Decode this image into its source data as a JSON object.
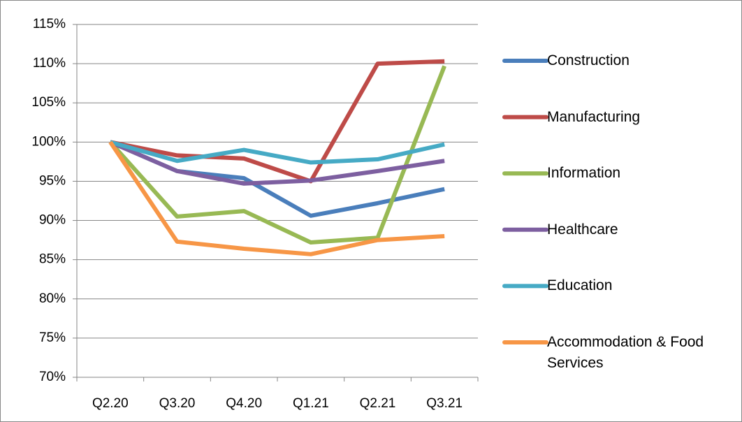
{
  "chart_data": {
    "type": "line",
    "categories": [
      "Q2.20",
      "Q3.20",
      "Q4.20",
      "Q1.21",
      "Q2.21",
      "Q3.21"
    ],
    "series": [
      {
        "name": "Construction",
        "color": "#4a7ebb",
        "values": [
          100,
          96.3,
          95.4,
          90.6,
          92.2,
          94.0
        ]
      },
      {
        "name": "Manufacturing",
        "color": "#be4b48",
        "values": [
          100,
          98.3,
          97.9,
          95.0,
          110.0,
          110.3
        ]
      },
      {
        "name": "Information",
        "color": "#98b954",
        "values": [
          100,
          90.5,
          91.2,
          87.2,
          87.8,
          109.7
        ]
      },
      {
        "name": "Healthcare",
        "color": "#7d5fa0",
        "values": [
          100,
          96.3,
          94.7,
          95.1,
          96.3,
          97.6
        ]
      },
      {
        "name": "Education",
        "color": "#46aac5",
        "values": [
          100,
          97.6,
          99.0,
          97.4,
          97.8,
          99.7
        ]
      },
      {
        "name": "Accommodation & Food Services",
        "color": "#f79646",
        "values": [
          100,
          87.3,
          86.4,
          85.7,
          87.5,
          88.0
        ]
      }
    ],
    "ylim": [
      70,
      115
    ],
    "yticks": [
      {
        "value": 70,
        "label": "70%"
      },
      {
        "value": 75,
        "label": "75%"
      },
      {
        "value": 80,
        "label": "80%"
      },
      {
        "value": 85,
        "label": "85%"
      },
      {
        "value": 90,
        "label": "90%"
      },
      {
        "value": 95,
        "label": "95%"
      },
      {
        "value": 100,
        "label": "100%"
      },
      {
        "value": 105,
        "label": "105%"
      },
      {
        "value": 110,
        "label": "110%"
      },
      {
        "value": 115,
        "label": "115%"
      }
    ],
    "grid": true,
    "legend": "right"
  }
}
